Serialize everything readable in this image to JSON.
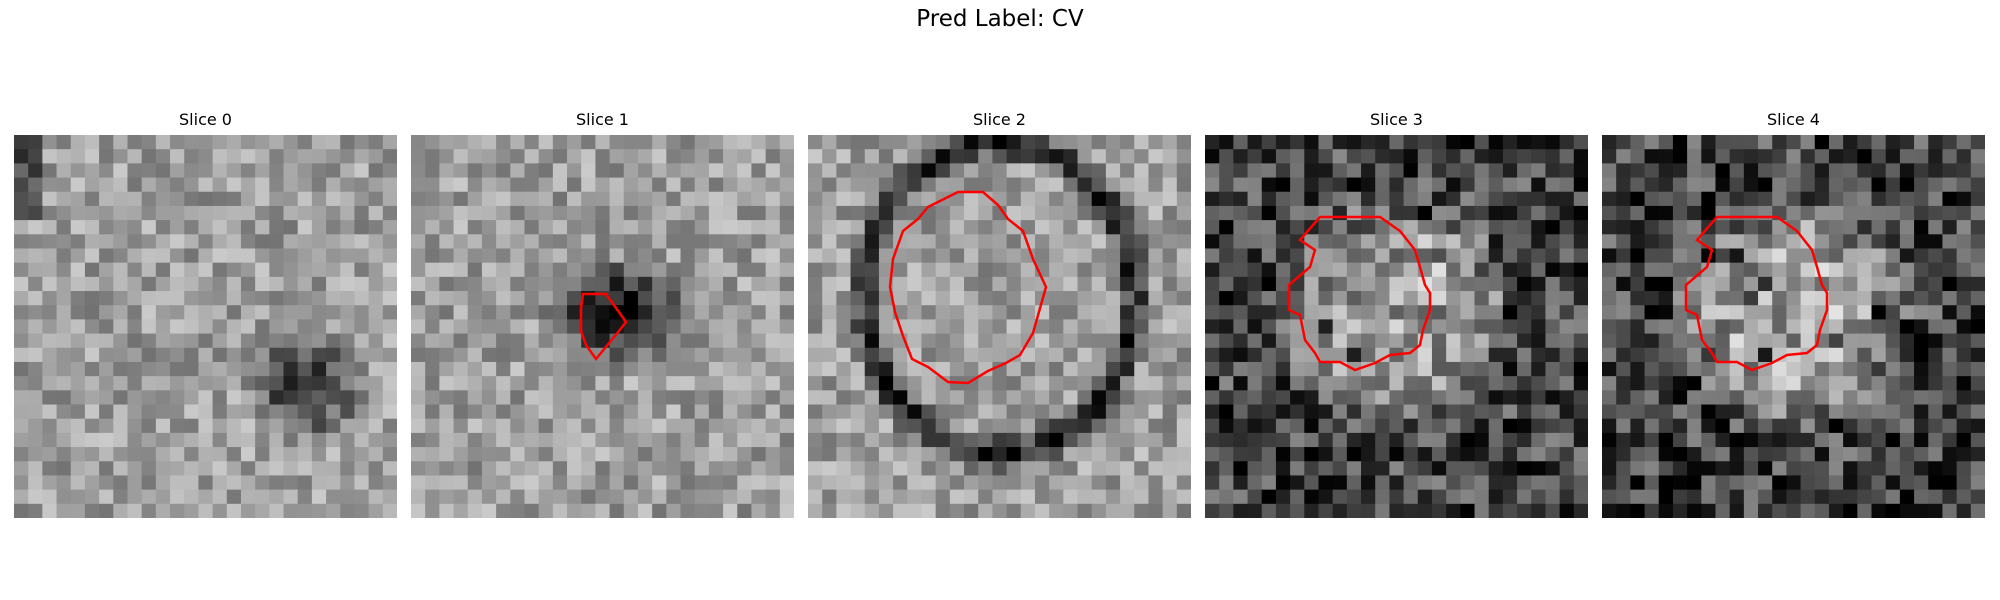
{
  "figure": {
    "title": "Pred Label: CV"
  },
  "panels": [
    {
      "title": "Slice 0",
      "contour": false
    },
    {
      "title": "Slice 1",
      "contour": true
    },
    {
      "title": "Slice 2",
      "contour": true
    },
    {
      "title": "Slice 3",
      "contour": true
    },
    {
      "title": "Slice 4",
      "contour": true
    }
  ],
  "colors": {
    "contour": "#ff0000",
    "background": "#ffffff"
  }
}
